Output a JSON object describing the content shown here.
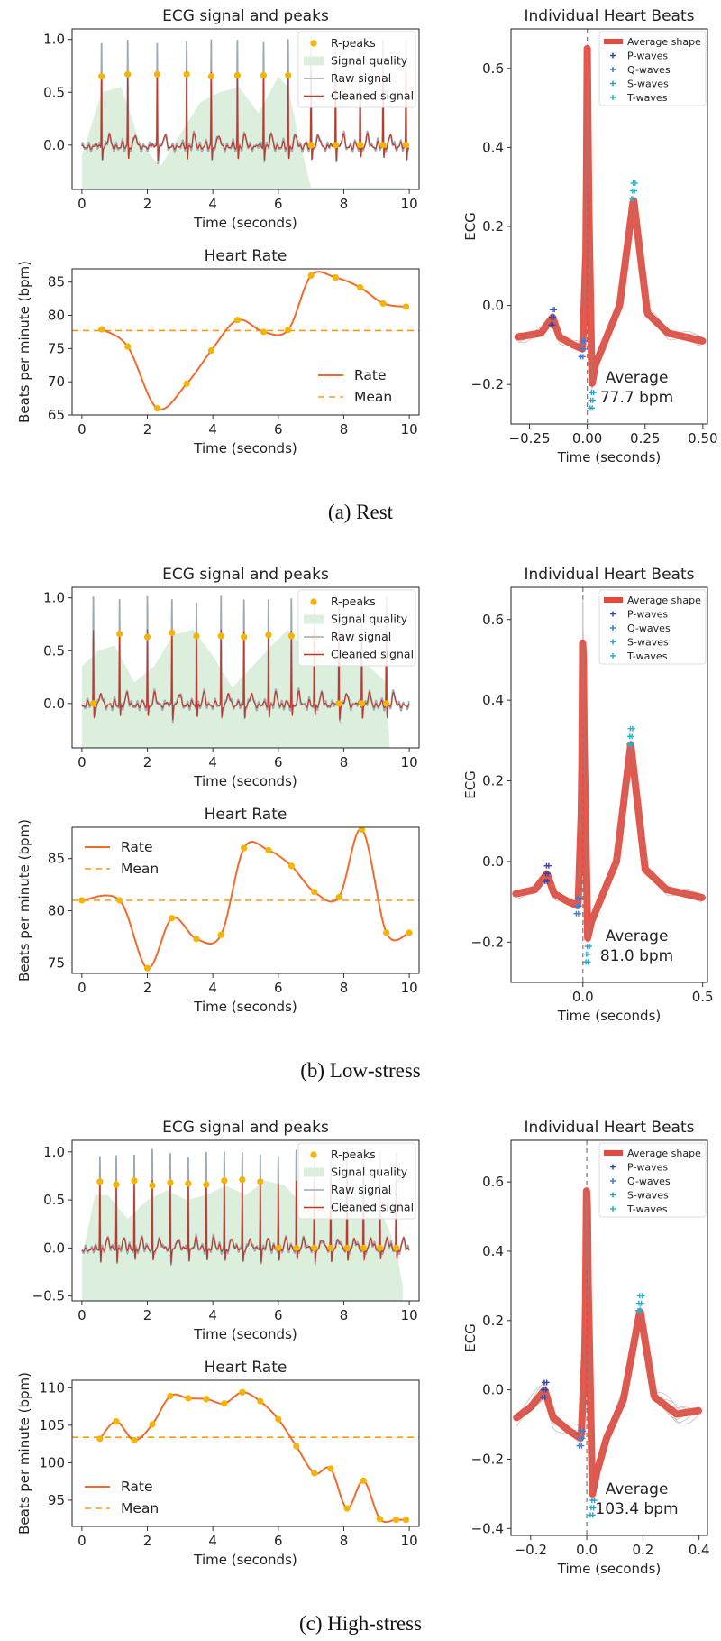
{
  "chart_data": [
    {
      "panel": "a",
      "type": "line",
      "title": "ECG signal and peaks",
      "xlabel": "Time (seconds)",
      "ylabel": "",
      "xlim": [
        -0.3,
        10.3
      ],
      "ylim": [
        -0.42,
        1.1
      ],
      "xticks": [
        0,
        2,
        4,
        6,
        8,
        10
      ],
      "yticks": [
        0.0,
        0.5,
        1.0
      ],
      "yticklabels": [
        "0.0",
        "0.5",
        "1.0"
      ],
      "legend": {
        "placement": "top-right",
        "entries": [
          "R-peaks",
          "Signal quality",
          "Raw signal",
          "Cleaned signal"
        ]
      },
      "r_peaks": {
        "x": [
          0.6,
          1.4,
          2.3,
          3.2,
          3.95,
          4.75,
          5.55,
          6.3,
          7.0,
          7.75,
          8.5,
          9.2,
          9.9
        ],
        "y": [
          0.65,
          0.67,
          0.67,
          0.67,
          0.65,
          0.66,
          0.66,
          0.66,
          0.0,
          0.0,
          0.0,
          0.0,
          0.0
        ]
      },
      "signal_quality": {
        "x": [
          0,
          0.6,
          1.2,
          1.8,
          2.4,
          3.0,
          3.6,
          4.2,
          4.8,
          5.4,
          6.0,
          6.3,
          6.6,
          7.0,
          10.0
        ],
        "y": [
          0.3,
          0.9,
          0.95,
          0.4,
          0.2,
          0.5,
          0.8,
          0.9,
          0.95,
          0.7,
          1.05,
          0.95,
          0.5,
          0.0,
          0.0
        ]
      }
    },
    {
      "panel": "a",
      "type": "line",
      "title": "Heart Rate",
      "xlabel": "Time (seconds)",
      "ylabel": "Beats per minute (bpm)",
      "xlim": [
        -0.3,
        10.3
      ],
      "ylim": [
        65,
        87
      ],
      "xticks": [
        0,
        2,
        4,
        6,
        8,
        10
      ],
      "yticks": [
        65,
        70,
        75,
        80,
        85
      ],
      "legend": {
        "placement": "lower-right",
        "entries": [
          "Rate",
          "Mean"
        ]
      },
      "series": [
        {
          "name": "Rate",
          "x": [
            0.6,
            1.4,
            2.3,
            3.2,
            3.95,
            4.75,
            5.55,
            6.3,
            7.0,
            7.75,
            8.5,
            9.2,
            9.9
          ],
          "y": [
            77.9,
            75.3,
            66.0,
            69.7,
            74.7,
            79.3,
            77.5,
            77.8,
            86.0,
            85.7,
            84.2,
            81.8,
            81.3
          ]
        },
        {
          "name": "Mean",
          "y": 77.7
        }
      ]
    },
    {
      "panel": "a",
      "type": "line",
      "title": "Individual Heart Beats",
      "xlabel": "Time (seconds)",
      "ylabel": "ECG",
      "xlim": [
        -0.33,
        0.52
      ],
      "ylim": [
        -0.3,
        0.7
      ],
      "xticks": [
        -0.25,
        0.0,
        0.25,
        0.5
      ],
      "xticklabels": [
        "−0.25",
        "0.00",
        "0.25",
        "0.50"
      ],
      "yticks": [
        -0.2,
        0.0,
        0.2,
        0.4,
        0.6
      ],
      "yticklabels": [
        "−0.2",
        "0.0",
        "0.2",
        "0.4",
        "0.6"
      ],
      "legend": {
        "placement": "top-right",
        "entries": [
          "Average shape",
          "P-waves",
          "Q-waves",
          "S-waves",
          "T-waves"
        ]
      },
      "average_shape": {
        "x": [
          -0.3,
          -0.2,
          -0.15,
          -0.12,
          -0.06,
          -0.02,
          -0.005,
          0.0,
          0.005,
          0.02,
          0.035,
          0.07,
          0.14,
          0.2,
          0.26,
          0.35,
          0.5
        ],
        "y": [
          -0.08,
          -0.07,
          -0.03,
          -0.08,
          -0.1,
          -0.11,
          0.15,
          0.65,
          0.3,
          -0.2,
          -0.15,
          -0.1,
          0.0,
          0.27,
          -0.02,
          -0.07,
          -0.09
        ]
      },
      "annotation_lines": [
        "Average",
        "77.7 bpm"
      ]
    },
    {
      "panel": "b",
      "type": "line",
      "title": "ECG signal and peaks",
      "xlabel": "Time (seconds)",
      "ylabel": "",
      "xlim": [
        -0.3,
        10.3
      ],
      "ylim": [
        -0.42,
        1.1
      ],
      "xticks": [
        0,
        2,
        4,
        6,
        8,
        10
      ],
      "yticks": [
        0.0,
        0.5,
        1.0
      ],
      "yticklabels": [
        "0.0",
        "0.5",
        "1.0"
      ],
      "legend": {
        "placement": "top-right",
        "entries": [
          "R-peaks",
          "Signal quality",
          "Raw signal",
          "Cleaned signal"
        ]
      },
      "r_peaks": {
        "x": [
          0.35,
          1.15,
          2.0,
          2.75,
          3.5,
          4.25,
          4.95,
          5.7,
          6.4,
          7.1,
          7.85,
          8.55,
          9.3
        ],
        "y": [
          0.0,
          0.66,
          0.63,
          0.67,
          0.64,
          0.64,
          0.63,
          0.65,
          0.64,
          0.63,
          0.0,
          0.0,
          0.0
        ]
      },
      "signal_quality": {
        "x": [
          0,
          0.5,
          1.0,
          1.6,
          2.2,
          2.8,
          3.4,
          4.0,
          4.6,
          5.2,
          5.8,
          6.3,
          6.8,
          7.6,
          8.4,
          9.3,
          9.4
        ],
        "y": [
          0.75,
          0.9,
          0.95,
          0.6,
          0.75,
          1.05,
          1.1,
          0.85,
          0.55,
          0.75,
          0.95,
          1.1,
          0.9,
          0.95,
          0.85,
          0.6,
          0.0
        ]
      }
    },
    {
      "panel": "b",
      "type": "line",
      "title": "Heart Rate",
      "xlabel": "Time (seconds)",
      "ylabel": "Beats per minute (bpm)",
      "xlim": [
        -0.3,
        10.3
      ],
      "ylim": [
        74,
        88
      ],
      "xticks": [
        0,
        2,
        4,
        6,
        8,
        10
      ],
      "yticks": [
        75,
        80,
        85
      ],
      "legend": {
        "placement": "top-left",
        "entries": [
          "Rate",
          "Mean"
        ]
      },
      "series": [
        {
          "name": "Rate",
          "x": [
            0.0,
            1.15,
            2.0,
            2.75,
            3.5,
            4.25,
            4.95,
            5.7,
            6.4,
            7.1,
            7.85,
            8.55,
            9.3,
            10.0
          ],
          "y": [
            81.0,
            81.0,
            74.5,
            79.3,
            77.3,
            77.7,
            86.0,
            85.8,
            84.3,
            81.8,
            81.3,
            87.8,
            77.9,
            77.9
          ]
        },
        {
          "name": "Mean",
          "y": 81.0
        }
      ]
    },
    {
      "panel": "b",
      "type": "line",
      "title": "Individual Heart Beats",
      "xlabel": "Time (seconds)",
      "ylabel": "ECG",
      "xlim": [
        -0.3,
        0.52
      ],
      "ylim": [
        -0.3,
        0.68
      ],
      "xticks": [
        0.0,
        0.5
      ],
      "xticklabels": [
        "0.0",
        "0.5"
      ],
      "yticks": [
        -0.2,
        0.0,
        0.2,
        0.4,
        0.6
      ],
      "yticklabels": [
        "−0.2",
        "0.0",
        "0.2",
        "0.4",
        "0.6"
      ],
      "legend": {
        "placement": "top-right",
        "entries": [
          "Average shape",
          "P-waves",
          "Q-waves",
          "S-waves",
          "T-waves"
        ]
      },
      "average_shape": {
        "x": [
          -0.28,
          -0.2,
          -0.15,
          -0.12,
          -0.06,
          -0.02,
          -0.005,
          0.0,
          0.005,
          0.02,
          0.035,
          0.07,
          0.14,
          0.2,
          0.26,
          0.35,
          0.5
        ],
        "y": [
          -0.08,
          -0.07,
          -0.03,
          -0.08,
          -0.1,
          -0.11,
          0.15,
          0.64,
          0.3,
          -0.19,
          -0.15,
          -0.1,
          0.0,
          0.29,
          -0.02,
          -0.07,
          -0.09
        ]
      },
      "annotation_lines": [
        "Average",
        "81.0 bpm"
      ]
    },
    {
      "panel": "c",
      "type": "line",
      "title": "ECG signal and peaks",
      "xlabel": "Time (seconds)",
      "ylabel": "",
      "xlim": [
        -0.3,
        10.3
      ],
      "ylim": [
        -0.55,
        1.12
      ],
      "xticks": [
        0,
        2,
        4,
        6,
        8,
        10
      ],
      "yticks": [
        -0.5,
        0.0,
        0.5,
        1.0
      ],
      "yticklabels": [
        "−0.5",
        "0.0",
        "0.5",
        "1.0"
      ],
      "legend": {
        "placement": "top-right",
        "entries": [
          "R-peaks",
          "Signal quality",
          "Raw signal",
          "Cleaned signal"
        ]
      },
      "r_peaks": {
        "x": [
          0.55,
          1.05,
          1.6,
          2.15,
          2.7,
          3.25,
          3.8,
          4.35,
          4.9,
          5.45,
          6.0,
          6.55,
          7.1,
          7.6,
          8.1,
          8.6,
          9.1,
          9.6
        ],
        "y": [
          0.69,
          0.66,
          0.7,
          0.65,
          0.68,
          0.67,
          0.66,
          0.7,
          0.71,
          0.69,
          0.0,
          0.0,
          0.0,
          0.0,
          0.0,
          0.0,
          0.0,
          0.0
        ]
      },
      "signal_quality": {
        "x": [
          0,
          0.4,
          0.8,
          1.4,
          2.0,
          2.6,
          3.2,
          3.8,
          4.4,
          5.0,
          5.6,
          6.2,
          6.6,
          7.2,
          7.8,
          8.4,
          9.0,
          9.6,
          9.8
        ],
        "y": [
          0.3,
          0.95,
          0.95,
          0.7,
          0.9,
          1.0,
          0.9,
          0.95,
          1.05,
          0.95,
          1.1,
          1.05,
          0.9,
          0.95,
          0.85,
          0.8,
          0.9,
          0.4,
          0.0
        ]
      }
    },
    {
      "panel": "c",
      "type": "line",
      "title": "Heart Rate",
      "xlabel": "Time (seconds)",
      "ylabel": "Beats per minute (bpm)",
      "xlim": [
        -0.3,
        10.3
      ],
      "ylim": [
        91.5,
        111
      ],
      "xticks": [
        0,
        2,
        4,
        6,
        8,
        10
      ],
      "yticks": [
        95,
        100,
        105,
        110
      ],
      "legend": {
        "placement": "lower-left",
        "entries": [
          "Rate",
          "Mean"
        ]
      },
      "series": [
        {
          "name": "Rate",
          "x": [
            0.55,
            1.05,
            1.6,
            2.15,
            2.7,
            3.25,
            3.8,
            4.35,
            4.9,
            5.45,
            6.0,
            6.55,
            7.1,
            7.6,
            8.1,
            8.6,
            9.1,
            9.6,
            9.9
          ],
          "y": [
            103.2,
            105.5,
            103.0,
            105.1,
            108.9,
            108.6,
            108.5,
            107.9,
            109.4,
            108.2,
            105.8,
            102.2,
            98.6,
            99.2,
            93.9,
            97.6,
            92.5,
            92.4,
            92.4
          ]
        },
        {
          "name": "Mean",
          "y": 103.4
        }
      ]
    },
    {
      "panel": "c",
      "type": "line",
      "title": "Individual Heart Beats",
      "xlabel": "Time (seconds)",
      "ylabel": "ECG",
      "xlim": [
        -0.27,
        0.43
      ],
      "ylim": [
        -0.42,
        0.72
      ],
      "xticks": [
        -0.2,
        0.0,
        0.2,
        0.4
      ],
      "xticklabels": [
        "−0.2",
        "0.0",
        "0.2",
        "0.4"
      ],
      "yticks": [
        -0.4,
        -0.2,
        0.0,
        0.2,
        0.4,
        0.6
      ],
      "yticklabels": [
        "−0.4",
        "−0.2",
        "0.0",
        "0.2",
        "0.4",
        "0.6"
      ],
      "legend": {
        "placement": "top-right",
        "entries": [
          "Average shape",
          "P-waves",
          "Q-waves",
          "S-waves",
          "T-waves"
        ]
      },
      "average_shape": {
        "x": [
          -0.25,
          -0.2,
          -0.15,
          -0.12,
          -0.06,
          -0.02,
          -0.005,
          0.0,
          0.005,
          0.02,
          0.035,
          0.07,
          0.13,
          0.19,
          0.24,
          0.32,
          0.4
        ],
        "y": [
          -0.08,
          -0.05,
          0.0,
          -0.08,
          -0.12,
          -0.14,
          0.15,
          0.68,
          0.3,
          -0.3,
          -0.24,
          -0.14,
          -0.03,
          0.23,
          -0.02,
          -0.07,
          -0.06
        ]
      },
      "annotation_lines": [
        "Average",
        "103.4 bpm"
      ]
    }
  ],
  "captions": [
    "(a)  Rest",
    "(b)  Low-stress",
    "(c)  High-stress"
  ],
  "colors": {
    "peak": "#f5b400",
    "quality": "#dcefdc",
    "raw": "#9fa9b3",
    "clean": "#c0392b",
    "rate": "#f26b2d",
    "mean": "#f29b1d",
    "avg": "#e5483c",
    "p": "#3344aa",
    "q": "#3b7fd6",
    "s": "#2aa3c8",
    "t": "#27b4cf"
  }
}
